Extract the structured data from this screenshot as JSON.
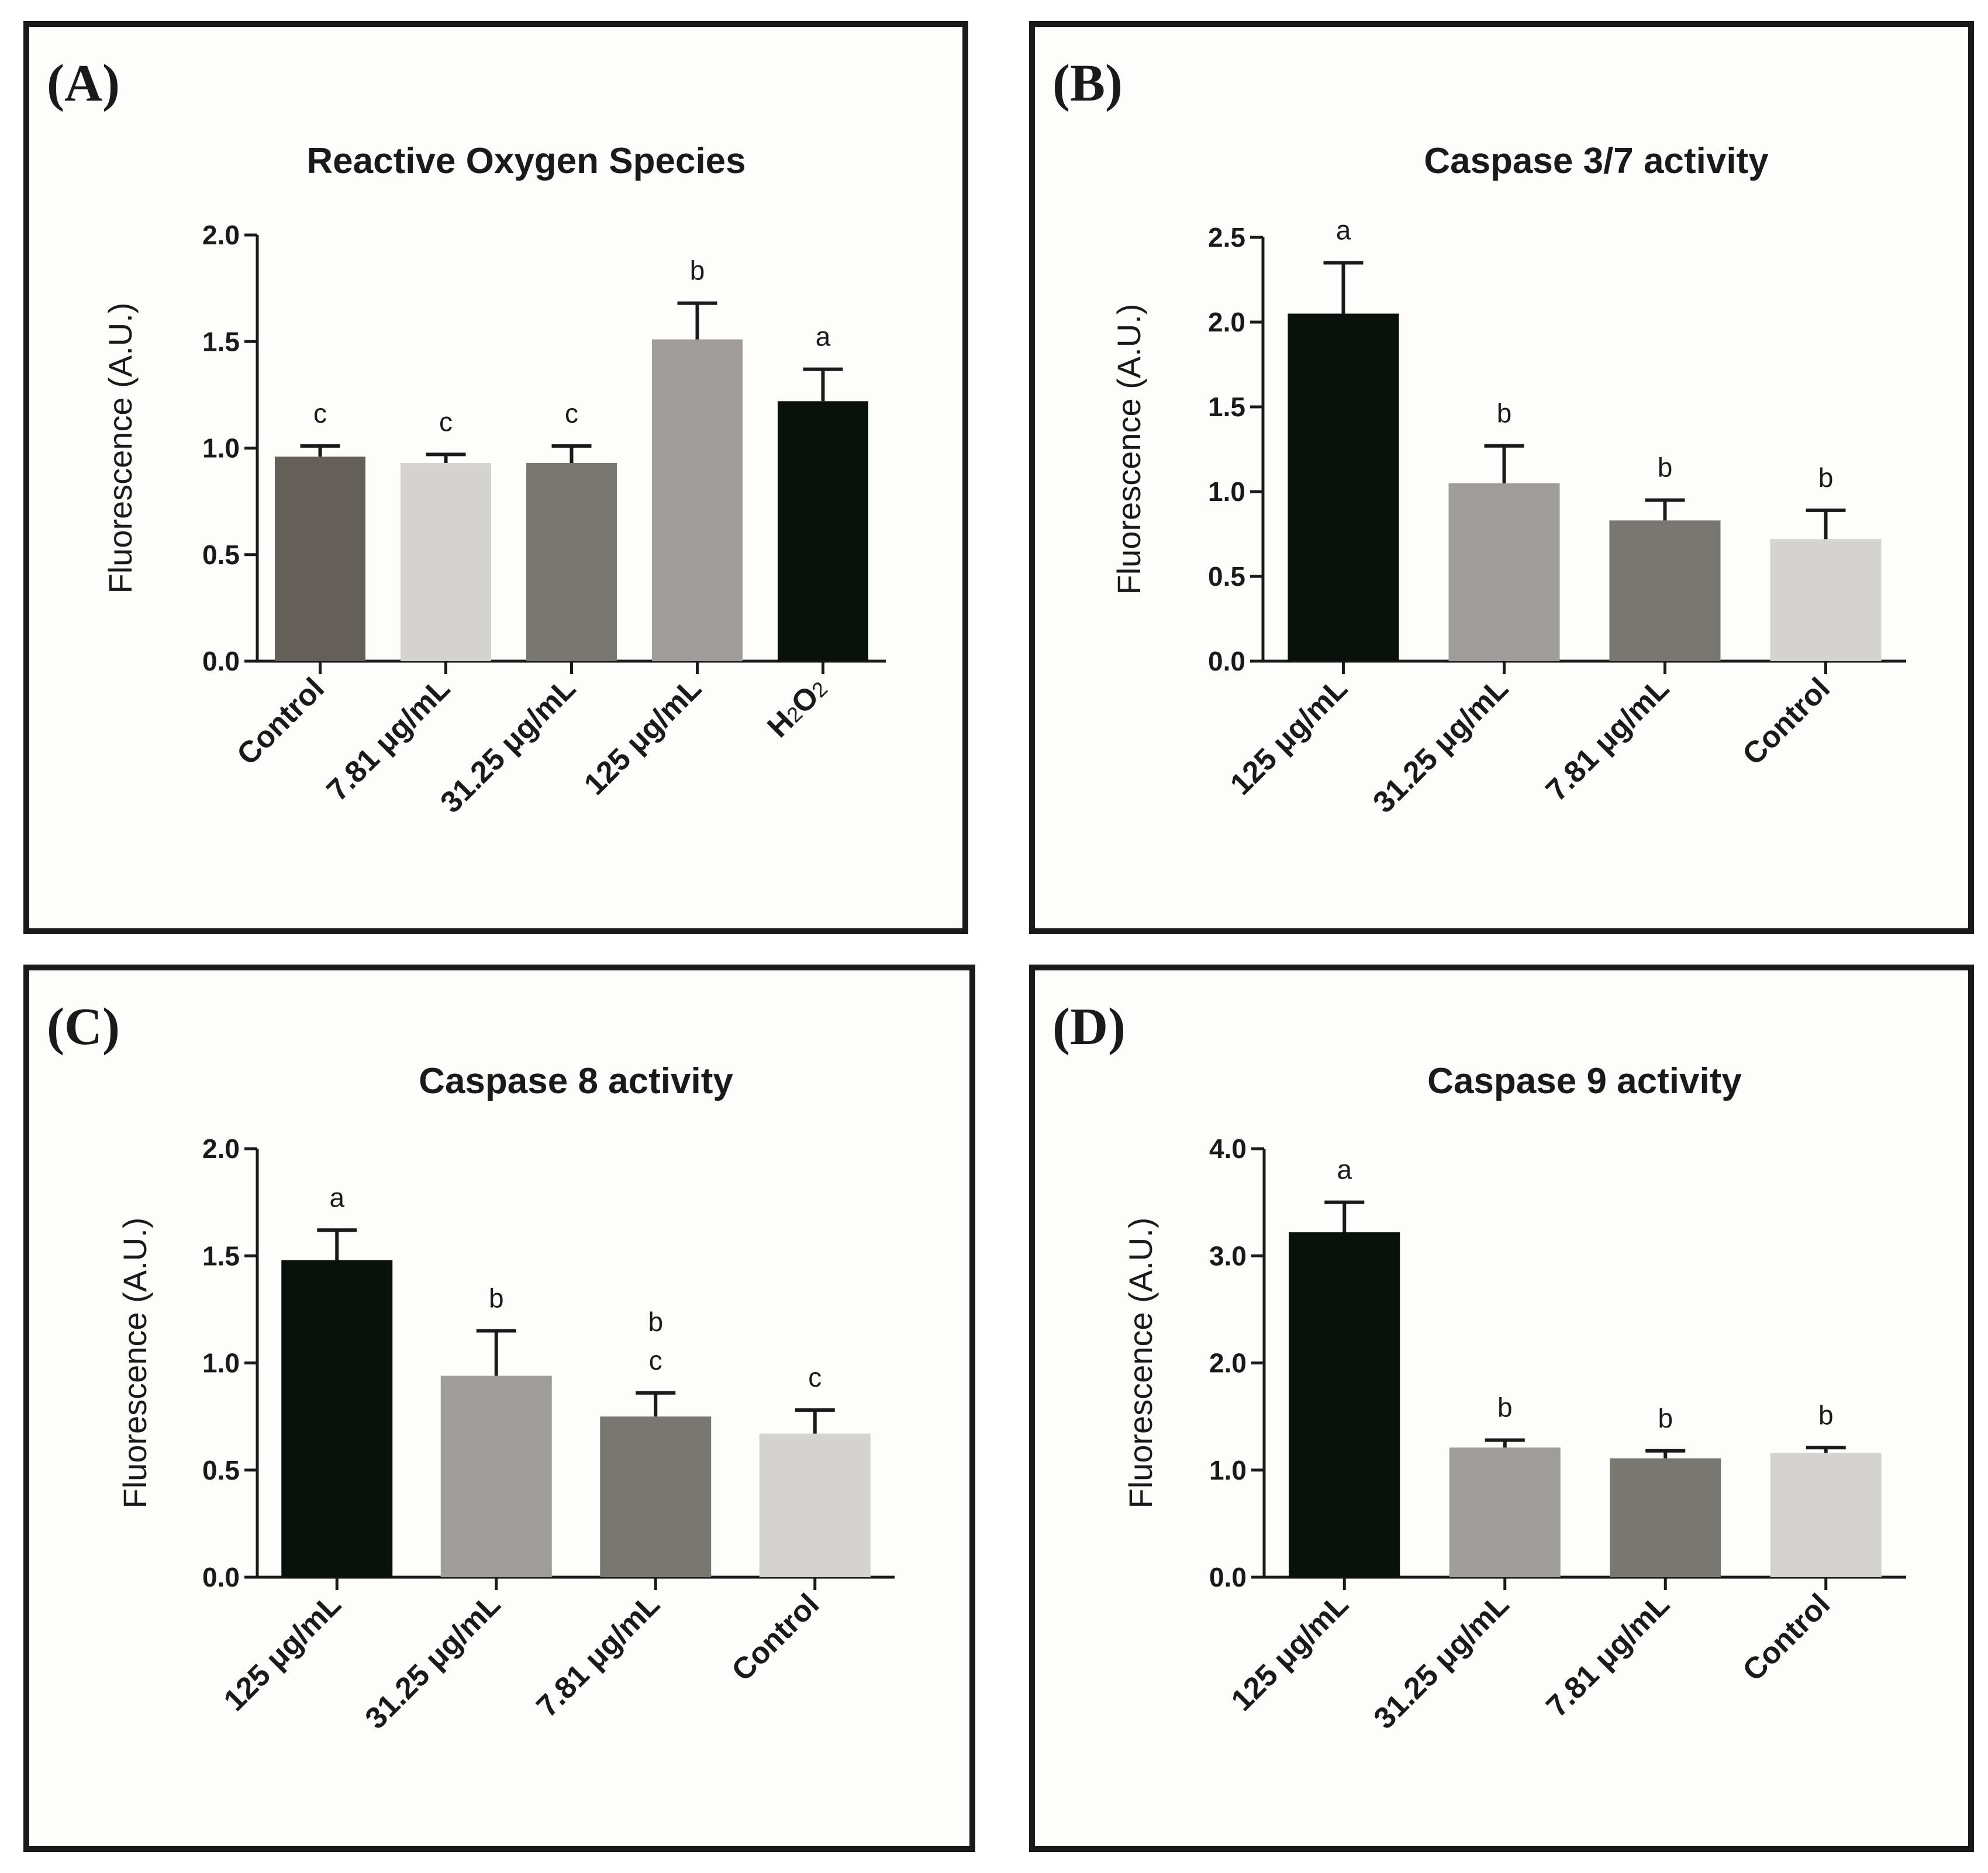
{
  "panels": [
    {
      "label": "(A)",
      "chart_data": {
        "type": "bar",
        "title": "Reactive Oxygen Species",
        "xlabel": "",
        "ylabel": "Fluorescence (A.U.)",
        "ylim": [
          0,
          2.0
        ],
        "yticks": [
          "0.0",
          "0.5",
          "1.0",
          "1.5",
          "2.0"
        ],
        "categories": [
          "Control",
          "7.81 μg/mL",
          "31.25 μg/mL",
          "125 μg/mL",
          "H2O2"
        ],
        "values": [
          0.96,
          0.93,
          0.93,
          1.51,
          1.22
        ],
        "errors": [
          0.05,
          0.04,
          0.08,
          0.17,
          0.15
        ],
        "significance": [
          "c",
          "c",
          "c",
          "b",
          "a"
        ],
        "colors": [
          "#646059",
          "#d4d3cf",
          "#7a7772",
          "#a09c9b",
          "#0a110b"
        ]
      }
    },
    {
      "label": "(B)",
      "chart_data": {
        "type": "bar",
        "title": "Caspase 3/7 activity",
        "xlabel": "",
        "ylabel": "Fluorescence (A.U.)",
        "ylim": [
          0,
          2.5
        ],
        "yticks": [
          "0.0",
          "0.5",
          "1.0",
          "1.5",
          "2.0",
          "2.5"
        ],
        "categories": [
          "125 μg/mL",
          "31.25 μg/mL",
          "7.81 μg/mL",
          "Control"
        ],
        "values": [
          2.05,
          1.05,
          0.83,
          0.72
        ],
        "errors": [
          0.3,
          0.22,
          0.12,
          0.17
        ],
        "significance": [
          "a",
          "b",
          "b",
          "b"
        ],
        "colors": [
          "#0a110b",
          "#a09c9b",
          "#7a7772",
          "#d4d3cf"
        ]
      }
    },
    {
      "label": "(C)",
      "chart_data": {
        "type": "bar",
        "title": "Caspase 8 activity",
        "xlabel": "",
        "ylabel": "Fluorescence (A.U.)",
        "ylim": [
          0,
          2.0
        ],
        "yticks": [
          "0.0",
          "0.5",
          "1.0",
          "1.5",
          "2.0"
        ],
        "categories": [
          "125 μg/mL",
          "31.25 μg/mL",
          "7.81 μg/mL",
          "Control"
        ],
        "values": [
          1.48,
          0.94,
          0.75,
          0.67
        ],
        "errors": [
          0.14,
          0.21,
          0.11,
          0.11
        ],
        "significance": [
          "a",
          "b",
          "b\nc",
          "c"
        ],
        "colors": [
          "#0a110b",
          "#a09c9b",
          "#7a7772",
          "#d4d3cf"
        ]
      }
    },
    {
      "label": "(D)",
      "chart_data": {
        "type": "bar",
        "title": "Caspase 9 activity",
        "xlabel": "",
        "ylabel": "Fluorescence (A.U.)",
        "ylim": [
          0,
          4.0
        ],
        "yticks": [
          "0.0",
          "1.0",
          "2.0",
          "3.0",
          "4.0"
        ],
        "categories": [
          "125 μg/mL",
          "31.25 μg/mL",
          "7.81 μg/mL",
          "Control"
        ],
        "values": [
          3.22,
          1.21,
          1.11,
          1.16
        ],
        "errors": [
          0.28,
          0.07,
          0.07,
          0.05
        ],
        "significance": [
          "a",
          "b",
          "b",
          "b"
        ],
        "colors": [
          "#0a110b",
          "#a09c9b",
          "#7a7772",
          "#d4d3cf"
        ]
      }
    }
  ]
}
